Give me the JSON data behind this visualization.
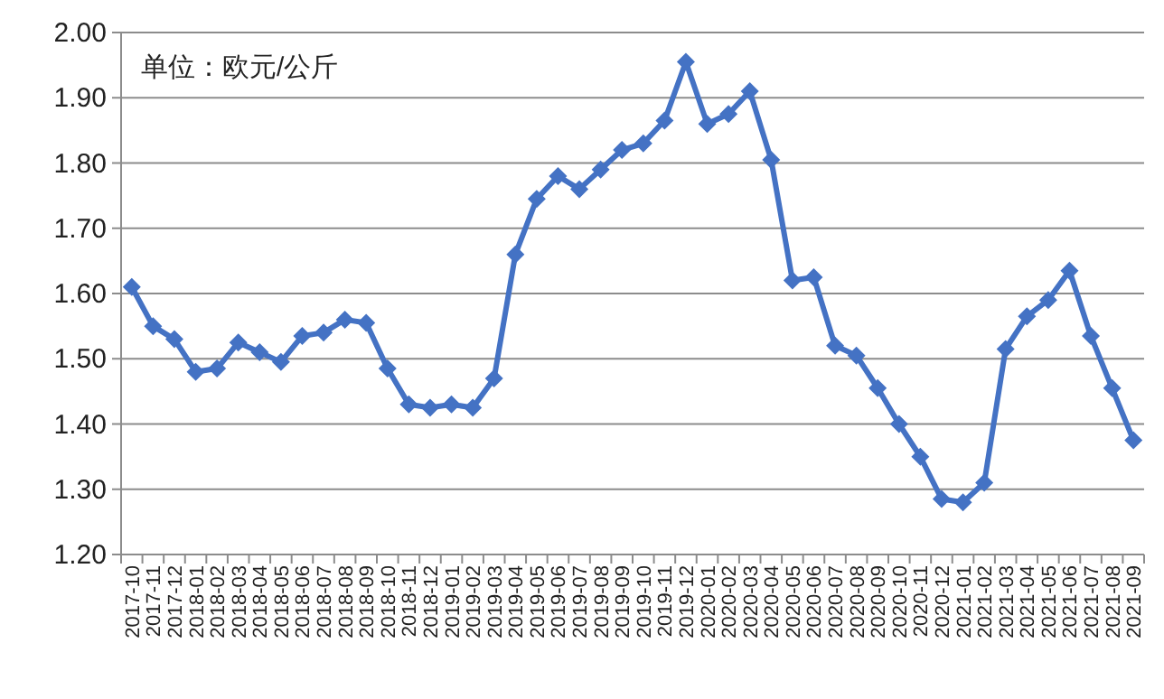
{
  "chart_data": {
    "type": "line",
    "annotations": [
      "单位：欧元/公斤"
    ],
    "categories": [
      "2017-10",
      "2017-11",
      "2017-12",
      "2018-01",
      "2018-02",
      "2018-03",
      "2018-04",
      "2018-05",
      "2018-06",
      "2018-07",
      "2018-08",
      "2018-09",
      "2018-10",
      "2018-11",
      "2018-12",
      "2019-01",
      "2019-02",
      "2019-03",
      "2019-04",
      "2019-05",
      "2019-06",
      "2019-07",
      "2019-08",
      "2019-09",
      "2019-10",
      "2019-11",
      "2019-12",
      "2020-01",
      "2020-02",
      "2020-03",
      "2020-04",
      "2020-05",
      "2020-06",
      "2020-07",
      "2020-08",
      "2020-09",
      "2020-10",
      "2020-11",
      "2020-12",
      "2021-01",
      "2021-02",
      "2021-03",
      "2021-04",
      "2021-05",
      "2021-06",
      "2021-07",
      "2021-08",
      "2021-09"
    ],
    "series": [
      {
        "color": "#4472c4",
        "values": [
          1.61,
          1.55,
          1.53,
          1.48,
          1.485,
          1.525,
          1.51,
          1.495,
          1.535,
          1.54,
          1.56,
          1.555,
          1.485,
          1.43,
          1.425,
          1.43,
          1.425,
          1.47,
          1.66,
          1.745,
          1.78,
          1.76,
          1.79,
          1.82,
          1.83,
          1.865,
          1.955,
          1.86,
          1.875,
          1.91,
          1.805,
          1.62,
          1.625,
          1.52,
          1.505,
          1.455,
          1.4,
          1.35,
          1.285,
          1.28,
          1.31,
          1.515,
          1.565,
          1.59,
          1.635,
          1.535,
          1.455,
          1.375
        ]
      }
    ],
    "ylim": [
      1.2,
      2.0
    ],
    "yticks": [
      {
        "value": 1.2,
        "label": "1.20"
      },
      {
        "value": 1.3,
        "label": "1.30"
      },
      {
        "value": 1.4,
        "label": "1.40"
      },
      {
        "value": 1.5,
        "label": "1.50"
      },
      {
        "value": 1.6,
        "label": "1.60"
      },
      {
        "value": 1.7,
        "label": "1.70"
      },
      {
        "value": 1.8,
        "label": "1.80"
      },
      {
        "value": 1.9,
        "label": "1.90"
      },
      {
        "value": 2.0,
        "label": "2.00"
      }
    ],
    "grid": "y",
    "marker": "diamond",
    "line_style": "solid"
  }
}
